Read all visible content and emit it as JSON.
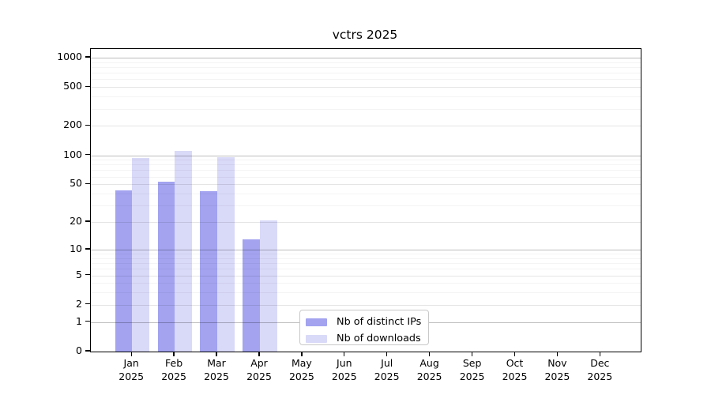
{
  "chart_data": {
    "type": "bar",
    "title": "vctrs 2025",
    "categories": [
      "Jan",
      "Feb",
      "Mar",
      "Apr",
      "May",
      "Jun",
      "Jul",
      "Aug",
      "Sep",
      "Oct",
      "Nov",
      "Dec"
    ],
    "year_label": "2025",
    "series": [
      {
        "name": "Nb of distinct IPs",
        "color": "#a3a3f0",
        "values": [
          43,
          53,
          42,
          13,
          null,
          null,
          null,
          null,
          null,
          null,
          null,
          null
        ]
      },
      {
        "name": "Nb of downloads",
        "color": "#d9d9f8",
        "values": [
          93,
          110,
          95,
          21,
          null,
          null,
          null,
          null,
          null,
          null,
          null,
          null
        ]
      }
    ],
    "y_axis": {
      "scale": "log1p",
      "ticks": [
        0,
        1,
        2,
        5,
        10,
        20,
        50,
        100,
        200,
        500,
        1000
      ],
      "tick_labels": [
        "0",
        "1",
        "2",
        "5",
        "10",
        "20",
        "50",
        "100",
        "200",
        "500",
        "1000"
      ],
      "ylim": [
        0,
        1200
      ],
      "grid_major": [
        1,
        10,
        100,
        1000
      ],
      "grid_minor": [
        2,
        5,
        20,
        50,
        200,
        500
      ],
      "grid_faint": [
        3,
        4,
        6,
        7,
        8,
        9,
        30,
        40,
        60,
        70,
        80,
        90,
        300,
        400,
        600,
        700,
        800,
        900
      ]
    },
    "legend": {
      "position": "bottom-center-inside"
    },
    "colors": {
      "axis": "#000000",
      "grid_major": "#bdbdbd",
      "grid_minor": "#e5e5e5",
      "grid_faint": "#f3f3f3",
      "background": "#ffffff"
    }
  }
}
